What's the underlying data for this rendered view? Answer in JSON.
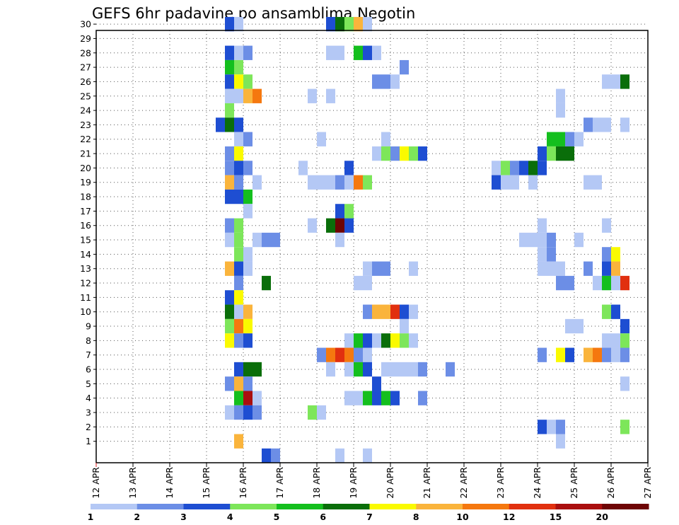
{
  "chart_data": {
    "type": "heatmap",
    "title": "GEFS 6hr padavine po ansamblima Negotin",
    "x_tick_labels": [
      "12 APR",
      "13 APR",
      "14 APR",
      "15 APR",
      "16 APR",
      "17 APR",
      "18 APR",
      "19 APR",
      "20 APR",
      "21 APR",
      "22 APR",
      "23 APR",
      "24 APR",
      "25 APR",
      "26 APR",
      "27 APR"
    ],
    "y_tick_labels": [
      "1",
      "2",
      "3",
      "4",
      "5",
      "6",
      "7",
      "8",
      "9",
      "10",
      "11",
      "12",
      "13",
      "14",
      "15",
      "16",
      "17",
      "18",
      "19",
      "20",
      "21",
      "22",
      "23",
      "24",
      "25",
      "26",
      "27",
      "28",
      "29",
      "30"
    ],
    "members": [
      1,
      30
    ],
    "steps_per_day": 4,
    "step_hours": 6,
    "grid": true,
    "colorbar": {
      "labels": [
        "1",
        "2",
        "3",
        "4",
        "5",
        "6",
        "7",
        "8",
        "10",
        "12",
        "15",
        "20"
      ],
      "colors": [
        "#b4c8f5",
        "#6c8ee6",
        "#1e4ed2",
        "#7de65a",
        "#14bf1e",
        "#0a6e0a",
        "#fafa00",
        "#fab43c",
        "#f5780f",
        "#e1300f",
        "#aa0f0f",
        "#6e0505"
      ]
    },
    "cells": [
      [
        30,
        4.5,
        2
      ],
      [
        30,
        4.75,
        0
      ],
      [
        30,
        7.25,
        2
      ],
      [
        30,
        7.5,
        5
      ],
      [
        30,
        7.75,
        3
      ],
      [
        30,
        8.0,
        7
      ],
      [
        30,
        8.25,
        0
      ],
      [
        28,
        4.5,
        2
      ],
      [
        28,
        4.75,
        0
      ],
      [
        28,
        5.0,
        1
      ],
      [
        28,
        7.25,
        0
      ],
      [
        28,
        7.5,
        0
      ],
      [
        28,
        8.0,
        4
      ],
      [
        28,
        8.25,
        2
      ],
      [
        28,
        8.5,
        0
      ],
      [
        27,
        4.5,
        4
      ],
      [
        27,
        4.75,
        3
      ],
      [
        27,
        9.25,
        1
      ],
      [
        26,
        4.5,
        2
      ],
      [
        26,
        4.75,
        6
      ],
      [
        26,
        5.0,
        3
      ],
      [
        26,
        8.5,
        1
      ],
      [
        26,
        8.75,
        1
      ],
      [
        26,
        9.0,
        0
      ],
      [
        26,
        14.75,
        0
      ],
      [
        26,
        15.0,
        0
      ],
      [
        26,
        15.25,
        5
      ],
      [
        25,
        4.5,
        0
      ],
      [
        25,
        4.75,
        0
      ],
      [
        25,
        5.0,
        7
      ],
      [
        25,
        5.25,
        8
      ],
      [
        25,
        6.75,
        0
      ],
      [
        25,
        7.25,
        0
      ],
      [
        25,
        13.5,
        0
      ],
      [
        24,
        4.5,
        3
      ],
      [
        24,
        13.5,
        0
      ],
      [
        23,
        4.25,
        2
      ],
      [
        23,
        4.5,
        5
      ],
      [
        23,
        4.75,
        2
      ],
      [
        23,
        14.25,
        1
      ],
      [
        23,
        14.5,
        0
      ],
      [
        23,
        14.75,
        0
      ],
      [
        23,
        15.25,
        0
      ],
      [
        22,
        4.75,
        0
      ],
      [
        22,
        5.0,
        1
      ],
      [
        22,
        7.0,
        0
      ],
      [
        22,
        8.75,
        0
      ],
      [
        22,
        13.25,
        4
      ],
      [
        22,
        13.5,
        4
      ],
      [
        22,
        13.75,
        1
      ],
      [
        22,
        14.0,
        0
      ],
      [
        21,
        4.5,
        1
      ],
      [
        21,
        4.75,
        6
      ],
      [
        21,
        8.5,
        0
      ],
      [
        21,
        8.75,
        3
      ],
      [
        21,
        9.0,
        1
      ],
      [
        21,
        9.25,
        6
      ],
      [
        21,
        9.5,
        3
      ],
      [
        21,
        9.75,
        2
      ],
      [
        21,
        13.0,
        2
      ],
      [
        21,
        13.25,
        3
      ],
      [
        21,
        13.5,
        5
      ],
      [
        21,
        13.75,
        5
      ],
      [
        20,
        4.5,
        1
      ],
      [
        20,
        4.75,
        2
      ],
      [
        20,
        5.0,
        1
      ],
      [
        20,
        6.5,
        0
      ],
      [
        20,
        7.75,
        2
      ],
      [
        20,
        11.75,
        0
      ],
      [
        20,
        12.0,
        3
      ],
      [
        20,
        12.25,
        1
      ],
      [
        20,
        12.5,
        2
      ],
      [
        20,
        12.75,
        5
      ],
      [
        20,
        13.0,
        2
      ],
      [
        19,
        4.5,
        7
      ],
      [
        19,
        4.75,
        1
      ],
      [
        19,
        5.25,
        0
      ],
      [
        19,
        6.75,
        0
      ],
      [
        19,
        7.0,
        0
      ],
      [
        19,
        7.25,
        0
      ],
      [
        19,
        7.5,
        1
      ],
      [
        19,
        7.75,
        0
      ],
      [
        19,
        8.0,
        8
      ],
      [
        19,
        8.25,
        3
      ],
      [
        19,
        11.75,
        2
      ],
      [
        19,
        12.0,
        0
      ],
      [
        19,
        12.25,
        0
      ],
      [
        19,
        12.75,
        0
      ],
      [
        19,
        14.25,
        0
      ],
      [
        19,
        14.5,
        0
      ],
      [
        18,
        4.5,
        2
      ],
      [
        18,
        4.75,
        2
      ],
      [
        18,
        5.0,
        4
      ],
      [
        17,
        5.0,
        0
      ],
      [
        17,
        7.5,
        2
      ],
      [
        17,
        7.75,
        3
      ],
      [
        16,
        4.5,
        1
      ],
      [
        16,
        4.75,
        3
      ],
      [
        16,
        6.75,
        0
      ],
      [
        16,
        7.25,
        5
      ],
      [
        16,
        7.5,
        11
      ],
      [
        16,
        7.75,
        2
      ],
      [
        16,
        13.0,
        0
      ],
      [
        16,
        14.75,
        0
      ],
      [
        15,
        4.5,
        0
      ],
      [
        15,
        4.75,
        3
      ],
      [
        15,
        5.25,
        0
      ],
      [
        15,
        5.5,
        1
      ],
      [
        15,
        5.75,
        1
      ],
      [
        15,
        7.5,
        0
      ],
      [
        15,
        12.5,
        0
      ],
      [
        15,
        12.75,
        0
      ],
      [
        15,
        13.0,
        0
      ],
      [
        15,
        13.25,
        1
      ],
      [
        15,
        14.0,
        0
      ],
      [
        14,
        4.75,
        3
      ],
      [
        14,
        5.0,
        0
      ],
      [
        14,
        13.0,
        0
      ],
      [
        14,
        13.25,
        1
      ],
      [
        14,
        14.75,
        1
      ],
      [
        14,
        15.0,
        6
      ],
      [
        13,
        4.5,
        7
      ],
      [
        13,
        4.75,
        2
      ],
      [
        13,
        5.0,
        0
      ],
      [
        13,
        8.25,
        0
      ],
      [
        13,
        8.5,
        1
      ],
      [
        13,
        8.75,
        1
      ],
      [
        13,
        9.5,
        0
      ],
      [
        13,
        13.0,
        0
      ],
      [
        13,
        13.25,
        0
      ],
      [
        13,
        13.5,
        0
      ],
      [
        13,
        14.25,
        1
      ],
      [
        13,
        14.75,
        2
      ],
      [
        13,
        15.0,
        7
      ],
      [
        12,
        4.75,
        1
      ],
      [
        12,
        5.5,
        5
      ],
      [
        12,
        8.0,
        0
      ],
      [
        12,
        8.25,
        0
      ],
      [
        12,
        13.5,
        1
      ],
      [
        12,
        13.75,
        1
      ],
      [
        12,
        14.5,
        0
      ],
      [
        12,
        14.75,
        4
      ],
      [
        12,
        15.0,
        0
      ],
      [
        12,
        15.25,
        9
      ],
      [
        11,
        4.5,
        2
      ],
      [
        11,
        4.75,
        6
      ],
      [
        10,
        4.5,
        5
      ],
      [
        10,
        4.75,
        0
      ],
      [
        10,
        5.0,
        7
      ],
      [
        10,
        8.25,
        1
      ],
      [
        10,
        8.5,
        7
      ],
      [
        10,
        8.75,
        7
      ],
      [
        10,
        9.0,
        9
      ],
      [
        10,
        9.25,
        2
      ],
      [
        10,
        9.5,
        0
      ],
      [
        10,
        14.75,
        3
      ],
      [
        10,
        15.0,
        2
      ],
      [
        9,
        4.5,
        3
      ],
      [
        9,
        4.75,
        8
      ],
      [
        9,
        5.0,
        6
      ],
      [
        9,
        9.25,
        0
      ],
      [
        9,
        13.75,
        0
      ],
      [
        9,
        14.0,
        0
      ],
      [
        9,
        15.25,
        2
      ],
      [
        8,
        4.5,
        6
      ],
      [
        8,
        4.75,
        1
      ],
      [
        8,
        5.0,
        2
      ],
      [
        8,
        7.75,
        0
      ],
      [
        8,
        8.0,
        4
      ],
      [
        8,
        8.25,
        2
      ],
      [
        8,
        8.5,
        0
      ],
      [
        8,
        8.75,
        5
      ],
      [
        8,
        9.0,
        6
      ],
      [
        8,
        9.25,
        3
      ],
      [
        8,
        9.5,
        0
      ],
      [
        8,
        14.75,
        0
      ],
      [
        8,
        15.0,
        0
      ],
      [
        8,
        15.25,
        3
      ],
      [
        7,
        7.0,
        1
      ],
      [
        7,
        7.25,
        8
      ],
      [
        7,
        7.5,
        9
      ],
      [
        7,
        7.75,
        8
      ],
      [
        7,
        8.0,
        1
      ],
      [
        7,
        8.25,
        0
      ],
      [
        7,
        13.0,
        1
      ],
      [
        7,
        13.5,
        6
      ],
      [
        7,
        13.75,
        2
      ],
      [
        7,
        14.25,
        7
      ],
      [
        7,
        14.5,
        8
      ],
      [
        7,
        14.75,
        1
      ],
      [
        7,
        15.0,
        0
      ],
      [
        7,
        15.25,
        1
      ],
      [
        6,
        4.75,
        2
      ],
      [
        6,
        5.0,
        5
      ],
      [
        6,
        5.25,
        5
      ],
      [
        6,
        7.25,
        0
      ],
      [
        6,
        7.75,
        0
      ],
      [
        6,
        8.0,
        4
      ],
      [
        6,
        8.25,
        2
      ],
      [
        6,
        8.75,
        0
      ],
      [
        6,
        9.0,
        0
      ],
      [
        6,
        9.25,
        0
      ],
      [
        6,
        9.5,
        0
      ],
      [
        6,
        9.75,
        1
      ],
      [
        6,
        10.5,
        1
      ],
      [
        5,
        4.5,
        1
      ],
      [
        5,
        4.75,
        7
      ],
      [
        5,
        5.0,
        1
      ],
      [
        5,
        8.5,
        2
      ],
      [
        5,
        15.25,
        0
      ],
      [
        4,
        4.75,
        4
      ],
      [
        4,
        5.0,
        10
      ],
      [
        4,
        5.25,
        0
      ],
      [
        4,
        7.75,
        0
      ],
      [
        4,
        8.0,
        0
      ],
      [
        4,
        8.25,
        4
      ],
      [
        4,
        8.5,
        2
      ],
      [
        4,
        8.75,
        4
      ],
      [
        4,
        9.0,
        2
      ],
      [
        4,
        9.75,
        1
      ],
      [
        3,
        4.5,
        0
      ],
      [
        3,
        4.75,
        1
      ],
      [
        3,
        5.0,
        2
      ],
      [
        3,
        5.25,
        1
      ],
      [
        3,
        6.75,
        3
      ],
      [
        3,
        7.0,
        0
      ],
      [
        2,
        13.0,
        2
      ],
      [
        2,
        13.25,
        0
      ],
      [
        2,
        13.5,
        1
      ],
      [
        2,
        15.25,
        3
      ],
      [
        1,
        4.75,
        7
      ],
      [
        1,
        13.5,
        0
      ],
      [
        0,
        5.5,
        2
      ],
      [
        0,
        5.75,
        1
      ],
      [
        0,
        7.5,
        0
      ],
      [
        0,
        8.25,
        0
      ]
    ]
  }
}
